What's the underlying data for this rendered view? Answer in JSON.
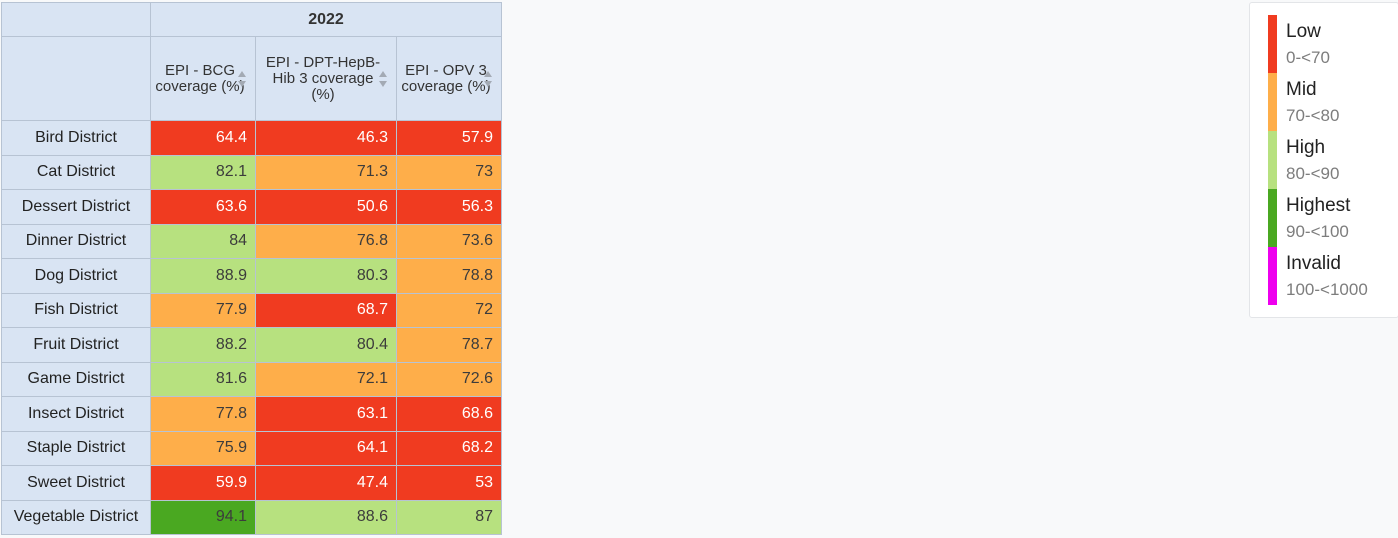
{
  "table": {
    "year_header": "2022",
    "corner": "",
    "columns": [
      "EPI - BCG coverage (%)",
      "EPI - DPT-HepB-Hib 3 coverage (%)",
      "EPI - OPV 3 coverage (%)"
    ],
    "rows": [
      {
        "district": "Bird District",
        "values": [
          "64.4",
          "46.3",
          "57.9"
        ],
        "levels": [
          "low",
          "low",
          "low"
        ]
      },
      {
        "district": "Cat District",
        "values": [
          "82.1",
          "71.3",
          "73"
        ],
        "levels": [
          "high",
          "mid",
          "mid"
        ]
      },
      {
        "district": "Dessert District",
        "values": [
          "63.6",
          "50.6",
          "56.3"
        ],
        "levels": [
          "low",
          "low",
          "low"
        ]
      },
      {
        "district": "Dinner District",
        "values": [
          "84",
          "76.8",
          "73.6"
        ],
        "levels": [
          "high",
          "mid",
          "mid"
        ]
      },
      {
        "district": "Dog District",
        "values": [
          "88.9",
          "80.3",
          "78.8"
        ],
        "levels": [
          "high",
          "high",
          "mid"
        ]
      },
      {
        "district": "Fish District",
        "values": [
          "77.9",
          "68.7",
          "72"
        ],
        "levels": [
          "mid",
          "low",
          "mid"
        ]
      },
      {
        "district": "Fruit District",
        "values": [
          "88.2",
          "80.4",
          "78.7"
        ],
        "levels": [
          "high",
          "high",
          "mid"
        ]
      },
      {
        "district": "Game District",
        "values": [
          "81.6",
          "72.1",
          "72.6"
        ],
        "levels": [
          "high",
          "mid",
          "mid"
        ]
      },
      {
        "district": "Insect District",
        "values": [
          "77.8",
          "63.1",
          "68.6"
        ],
        "levels": [
          "mid",
          "low",
          "low"
        ]
      },
      {
        "district": "Staple District",
        "values": [
          "75.9",
          "64.1",
          "68.2"
        ],
        "levels": [
          "mid",
          "low",
          "low"
        ]
      },
      {
        "district": "Sweet District",
        "values": [
          "59.9",
          "47.4",
          "53"
        ],
        "levels": [
          "low",
          "low",
          "low"
        ]
      },
      {
        "district": "Vegetable District",
        "values": [
          "94.1",
          "88.6",
          "87"
        ],
        "levels": [
          "highest",
          "high",
          "high"
        ]
      }
    ]
  },
  "legend": {
    "items": [
      {
        "key": "low",
        "name": "Low",
        "range": "0-<70",
        "color": "#f03b20"
      },
      {
        "key": "mid",
        "name": "Mid",
        "range": "70-<80",
        "color": "#feae4a"
      },
      {
        "key": "high",
        "name": "High",
        "range": "80-<90",
        "color": "#b7e17f"
      },
      {
        "key": "highest",
        "name": "Highest",
        "range": "90-<100",
        "color": "#4aa821"
      },
      {
        "key": "invalid",
        "name": "Invalid",
        "range": "100-<1000",
        "color": "#ee00ee"
      }
    ]
  },
  "icons": {
    "sort": "sort-icon"
  }
}
